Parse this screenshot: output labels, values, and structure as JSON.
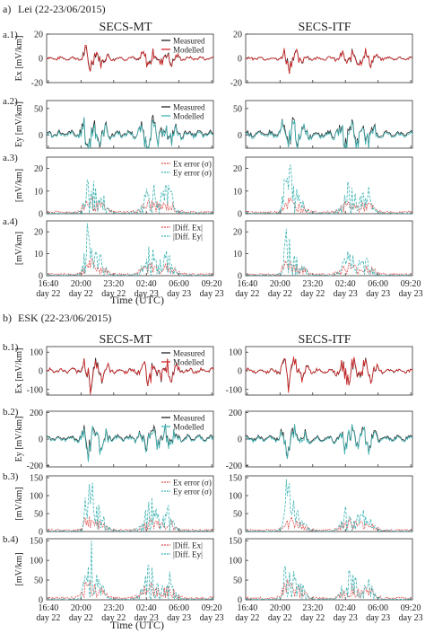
{
  "colors": {
    "measured": "#222222",
    "modelled": "#d62728",
    "ey": "#3fb3b3",
    "ex_err": "#e05050",
    "diff_ex": "#d62728",
    "axis": "#333333"
  },
  "figure": {
    "panels": [
      {
        "label": "a)",
        "title": "Lei (22-23/06/2015)"
      },
      {
        "label": "b)",
        "title": "ESK (22-23/06/2015)"
      }
    ],
    "columns": [
      "SECS-MT",
      "SECS-ITF"
    ],
    "xlabel": "Time (UTC)"
  },
  "chart_data": [
    {
      "id": "lei",
      "type": "line",
      "station": "Lei",
      "title": "Lei (22-23/06/2015)",
      "x": [
        "16:40\nday 22",
        "20:00\nday 22",
        "23:20\nday 22",
        "02:40\nday 23",
        "06:00\nday 23",
        "09:20\nday 23"
      ],
      "rows": [
        {
          "label": "a.1)",
          "ylabel": "Ex [mV/km]",
          "ylim": [
            -20,
            20
          ],
          "yticks": [
            -20,
            0,
            20
          ],
          "legend": [
            "Measured",
            "Modelled"
          ],
          "legend_labels": [
            "Measured",
            "Modelled"
          ],
          "kind": "ex",
          "amp": 12,
          "start": 0
        },
        {
          "label": "a.2)",
          "ylabel": "Ey [mV/km]",
          "ylim": [
            -25,
            65
          ],
          "yticks": [
            0,
            50
          ],
          "legend": [
            "Measured",
            "Modelled"
          ],
          "legend_labels": [
            "Measured",
            "Modelled"
          ],
          "kind": "ey",
          "amp": 50,
          "start": 0
        },
        {
          "label": "a.3)",
          "ylabel": "[mV/km]",
          "ylim": [
            0,
            25
          ],
          "yticks": [
            0,
            10,
            20
          ],
          "legend": [
            "Ex error (σ)",
            "Ey error (σ)"
          ],
          "legend_labels": [
            "Ex error (σ)",
            "Ey error (σ)"
          ],
          "kind": "err",
          "amp": 22,
          "start": 0
        },
        {
          "label": "a.4)",
          "ylabel": "[mV/km]",
          "ylim": [
            0,
            25
          ],
          "yticks": [
            0,
            10,
            20
          ],
          "legend": [
            "|Diff. Ex|",
            "|Diff. Ey|"
          ],
          "legend_labels": [
            "|Diff. Ex|",
            "|Diff. Ey|"
          ],
          "kind": "diff",
          "amp": 18,
          "start": 0
        }
      ]
    },
    {
      "id": "esk",
      "type": "line",
      "station": "ESK",
      "title": "ESK (22-23/06/2015)",
      "x": [
        "16:40\nday 22",
        "20:00\nday 22",
        "23:20\nday 22",
        "02:40\nday 23",
        "06:00\nday 23",
        "09:20\nday 23"
      ],
      "rows": [
        {
          "label": "b.1)",
          "ylabel": "Ex [mV/km]",
          "ylim": [
            -130,
            130
          ],
          "yticks": [
            -100,
            0,
            100
          ],
          "legend": [
            "Measured",
            "Modelled"
          ],
          "legend_labels": [
            "Measured",
            "Modelled"
          ],
          "kind": "ex",
          "amp": 110,
          "start": 0
        },
        {
          "label": "b.2)",
          "ylabel": "Ey [mV/km]",
          "ylim": [
            -210,
            210
          ],
          "yticks": [
            -200,
            0,
            200
          ],
          "legend": [
            "Measured",
            "Modelled"
          ],
          "legend_labels": [
            "Measured",
            "Modelled"
          ],
          "kind": "ey",
          "amp": 170,
          "start": 0
        },
        {
          "label": "b.3)",
          "ylabel": "[mV/km]",
          "ylim": [
            0,
            155
          ],
          "yticks": [
            0,
            50,
            100,
            150
          ],
          "legend": [
            "Ex error (σ)",
            "Ey error (σ)"
          ],
          "legend_labels": [
            "Ex error (σ)",
            "Ey error (σ)"
          ],
          "kind": "err",
          "amp": 130,
          "start": 0
        },
        {
          "label": "b.4)",
          "ylabel": "[mV/km]",
          "ylim": [
            0,
            155
          ],
          "yticks": [
            0,
            50,
            100,
            150
          ],
          "legend": [
            "|Diff. Ex|",
            "|Diff. Ey|"
          ],
          "legend_labels": [
            "|Diff. Ex|",
            "|Diff. Ey|"
          ],
          "kind": "diff",
          "amp": 120,
          "start": 0
        }
      ]
    }
  ]
}
